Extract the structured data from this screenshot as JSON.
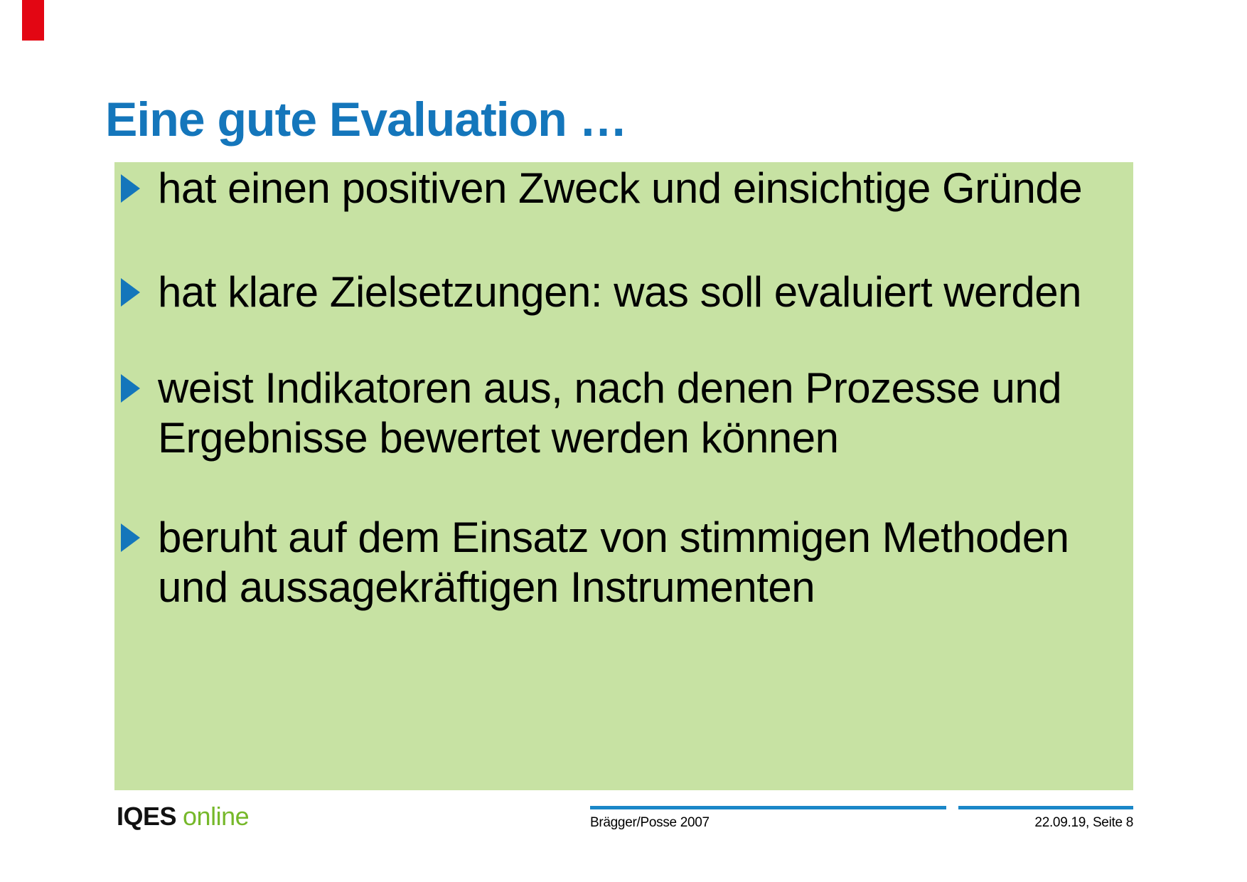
{
  "slide": {
    "title": "Eine gute Evaluation …",
    "bullets": [
      {
        "text": "hat einen positiven Zweck und einsichtige Gründe"
      },
      {
        "text": "hat klare Zielsetzungen: was soll evaluiert werden"
      },
      {
        "text": "weist Indikatoren aus, nach denen Prozesse und\nErgebnisse bewertet werden können"
      },
      {
        "text": "beruht auf dem Einsatz von stimmigen Methoden\nund aussagekräftigen Instrumenten"
      }
    ],
    "footer": {
      "logo_iqes": "IQES",
      "logo_online": "online",
      "source": "Brägger/Posse 2007",
      "date_page": "22.09.19, Seite 8"
    },
    "colors": {
      "title_blue": "#1476bb",
      "bullet_triangle_blue": "#1476bb",
      "content_box_green": "#c7e2a3",
      "accent_red": "#e30613",
      "footer_line_blue": "#1a87c8",
      "logo_green": "#76b82a",
      "text_black": "#000000"
    }
  }
}
